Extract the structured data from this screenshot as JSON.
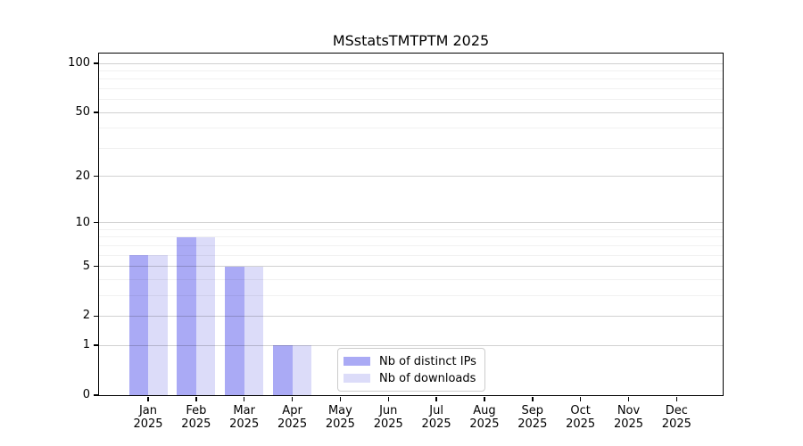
{
  "title": "MSstatsTMTPTM 2025",
  "chart_data": {
    "type": "bar",
    "title": "MSstatsTMTPTM 2025",
    "x": {
      "categories": [
        "Jan",
        "Feb",
        "Mar",
        "Apr",
        "May",
        "Jun",
        "Jul",
        "Aug",
        "Sep",
        "Oct",
        "Nov",
        "Dec"
      ],
      "year_label": "2025"
    },
    "series": [
      {
        "name": "Nb of distinct IPs",
        "color": "#aaaaf5",
        "values": [
          6,
          8,
          5,
          1,
          0,
          0,
          0,
          0,
          0,
          0,
          0,
          0
        ]
      },
      {
        "name": "Nb of downloads",
        "color": "#dcdcf9",
        "values": [
          6,
          8,
          5,
          1,
          0,
          0,
          0,
          0,
          0,
          0,
          0,
          0
        ]
      }
    ],
    "y_axis": {
      "scale": "log1p",
      "major_ticks": [
        0,
        1,
        2,
        5,
        10,
        20,
        50,
        100
      ],
      "minor_ticks": [
        3,
        4,
        6,
        7,
        8,
        9,
        30,
        40,
        60,
        70,
        80,
        90
      ],
      "range_max": 115
    },
    "grid": "major and minor horizontal gridlines",
    "legend_position": "bottom-center inside plot"
  }
}
